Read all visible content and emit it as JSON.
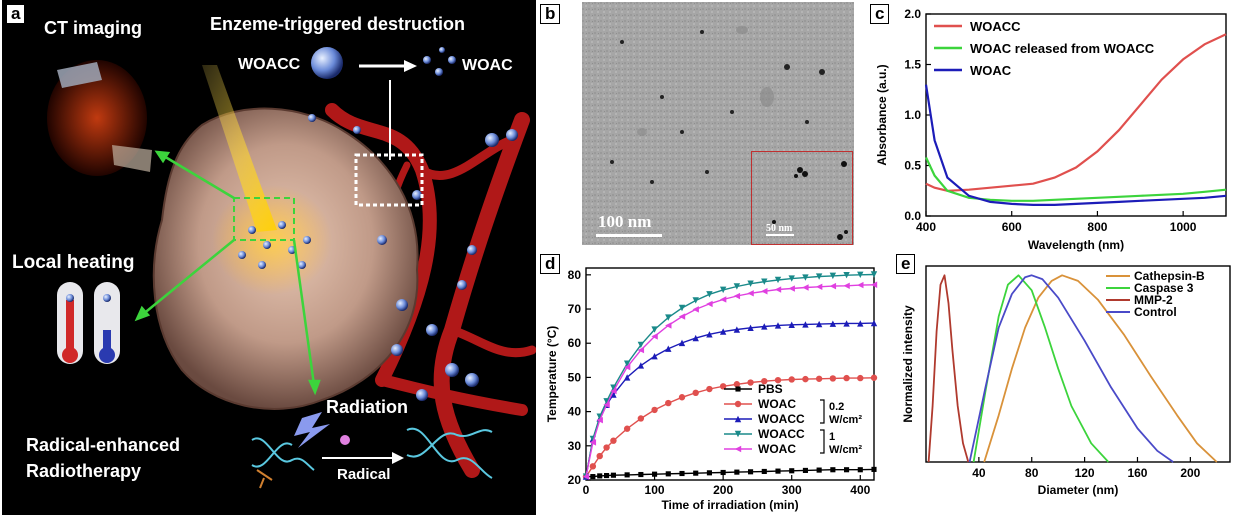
{
  "panels": {
    "a": "a",
    "b": "b",
    "c": "c",
    "d": "d",
    "e": "e"
  },
  "panel_a": {
    "ct": "CT imaging",
    "enzyme": "Enzeme-triggered destruction",
    "woacc": "WOACC",
    "woac": "WOAC",
    "heat": "Local heating",
    "radiation": "Radiation",
    "rert1": "Radical-enhanced",
    "rert2": "Radiotherapy",
    "radical": "Radical"
  },
  "panel_b": {
    "scale": "100 nm",
    "inset_scale": "50 nm"
  },
  "colors": {
    "red": "#e0504e",
    "green": "#3cd43c",
    "blue": "#1c1cb8",
    "black": "#000000",
    "teal": "#1a8a8a",
    "magenta": "#e040e0",
    "orange": "#d9923a",
    "mmp": "#b03a2e",
    "ctrl": "#4a4ac8"
  },
  "chart_data": [
    {
      "id": "c",
      "type": "line",
      "xlabel": "Wavelength (nm)",
      "ylabel": "Absorbance (a.u.)",
      "xlim": [
        400,
        1100
      ],
      "ylim": [
        0,
        2.0
      ],
      "xticks": [
        "400",
        "600",
        "800",
        "1000"
      ],
      "yticks": [
        "0.0",
        "0.5",
        "1.0",
        "1.5",
        "2.0"
      ],
      "legend_position": "top-left",
      "x": [
        400,
        420,
        450,
        500,
        550,
        600,
        650,
        700,
        750,
        800,
        850,
        900,
        950,
        1000,
        1050,
        1100
      ],
      "series": [
        {
          "name": "WOACC",
          "color": "#e0504e",
          "values": [
            0.32,
            0.28,
            0.25,
            0.26,
            0.28,
            0.3,
            0.32,
            0.38,
            0.48,
            0.64,
            0.85,
            1.1,
            1.35,
            1.55,
            1.7,
            1.8
          ]
        },
        {
          "name": "WOAC released from WOACC",
          "color": "#3cd43c",
          "values": [
            0.58,
            0.4,
            0.25,
            0.18,
            0.16,
            0.15,
            0.15,
            0.16,
            0.17,
            0.18,
            0.19,
            0.2,
            0.21,
            0.22,
            0.24,
            0.26
          ]
        },
        {
          "name": "WOAC",
          "color": "#1c1cb8",
          "values": [
            1.3,
            0.75,
            0.38,
            0.2,
            0.14,
            0.12,
            0.11,
            0.11,
            0.12,
            0.13,
            0.14,
            0.15,
            0.16,
            0.17,
            0.18,
            0.2
          ]
        }
      ]
    },
    {
      "id": "d",
      "type": "line",
      "xlabel": "Time of irradiation  (min)",
      "ylabel": "Temperature (°C)",
      "xlim": [
        0,
        420
      ],
      "ylim": [
        20,
        82
      ],
      "xticks": [
        "0",
        "100",
        "200",
        "300",
        "400"
      ],
      "yticks": [
        "20",
        "30",
        "40",
        "50",
        "60",
        "70",
        "80"
      ],
      "legend_position": "bottom-right",
      "bracket_labels": [
        {
          "top": "0.2",
          "bottom": "W/cm²"
        },
        {
          "top": "1",
          "bottom": "W/cm²"
        }
      ],
      "x": [
        0,
        10,
        20,
        30,
        40,
        60,
        80,
        100,
        120,
        140,
        160,
        180,
        200,
        220,
        240,
        260,
        280,
        300,
        320,
        340,
        360,
        380,
        400,
        420
      ],
      "series": [
        {
          "name": "PBS",
          "color": "#000000",
          "marker": "square",
          "values": [
            21,
            21,
            21.2,
            21.3,
            21.4,
            21.5,
            21.6,
            21.7,
            21.8,
            21.9,
            22,
            22.1,
            22.2,
            22.3,
            22.4,
            22.5,
            22.6,
            22.7,
            22.8,
            22.9,
            23,
            23,
            23,
            23.1
          ]
        },
        {
          "name": "WOAC",
          "color": "#e0504e",
          "marker": "circle",
          "values": [
            21,
            24,
            27,
            29.5,
            31.5,
            35,
            38,
            40.5,
            42.5,
            44.2,
            45.5,
            46.6,
            47.4,
            48,
            48.5,
            48.9,
            49.2,
            49.4,
            49.5,
            49.6,
            49.7,
            49.8,
            49.8,
            49.9
          ]
        },
        {
          "name": "WOACC",
          "color": "#1c1cb8",
          "marker": "triangle",
          "values": [
            21,
            32,
            38,
            42,
            45,
            50,
            53.5,
            56.2,
            58.4,
            60.1,
            61.5,
            62.6,
            63.4,
            64,
            64.5,
            64.9,
            65.2,
            65.4,
            65.5,
            65.6,
            65.7,
            65.8,
            65.8,
            65.9
          ]
        },
        {
          "name": "WOACC",
          "color": "#1a8a8a",
          "marker": "triangle-down",
          "values": [
            21,
            32,
            38.5,
            43,
            47,
            54,
            59.5,
            64,
            67.5,
            70.3,
            72.5,
            74.3,
            75.6,
            76.6,
            77.4,
            78,
            78.5,
            78.9,
            79.2,
            79.5,
            79.7,
            79.9,
            80,
            80.1
          ]
        },
        {
          "name": "WOAC",
          "color": "#e040e0",
          "marker": "triangle-left",
          "values": [
            21,
            31,
            37.5,
            42,
            46,
            53,
            58,
            62,
            65.2,
            67.8,
            69.9,
            71.5,
            72.8,
            73.8,
            74.6,
            75.2,
            75.7,
            76,
            76.3,
            76.5,
            76.7,
            76.8,
            77,
            77.1
          ]
        }
      ]
    },
    {
      "id": "e",
      "type": "line",
      "xlabel": "Diameter (nm)",
      "ylabel": "Normalized intensity",
      "xlim": [
        0,
        230
      ],
      "ylim": [
        0,
        1.05
      ],
      "xticks": [
        "40",
        "80",
        "120",
        "160",
        "200"
      ],
      "legend_position": "top-right",
      "series": [
        {
          "name": "Cathepsin-B",
          "color": "#d9923a",
          "x": [
            44,
            55,
            65,
            75,
            85,
            95,
            103,
            115,
            130,
            150,
            170,
            190,
            205,
            220
          ],
          "values": [
            0,
            0.25,
            0.5,
            0.72,
            0.88,
            0.97,
            1.0,
            0.97,
            0.87,
            0.68,
            0.46,
            0.25,
            0.1,
            0
          ]
        },
        {
          "name": "Caspase 3",
          "color": "#3cd43c",
          "x": [
            36,
            45,
            55,
            62,
            70,
            80,
            90,
            100,
            110,
            125,
            138
          ],
          "values": [
            0,
            0.38,
            0.78,
            0.95,
            1.0,
            0.92,
            0.72,
            0.5,
            0.3,
            0.1,
            0
          ]
        },
        {
          "name": "MMP-2",
          "color": "#b03a2e",
          "x": [
            2,
            5,
            8,
            11,
            14,
            17,
            20,
            24,
            28,
            32
          ],
          "values": [
            0,
            0.3,
            0.7,
            0.95,
            1.0,
            0.85,
            0.6,
            0.3,
            0.1,
            0
          ]
        },
        {
          "name": "Control",
          "color": "#4a4ac8",
          "x": [
            33,
            45,
            55,
            65,
            75,
            80,
            88,
            100,
            120,
            140,
            160,
            175,
            187
          ],
          "values": [
            0,
            0.4,
            0.72,
            0.9,
            0.99,
            1.0,
            0.98,
            0.88,
            0.65,
            0.4,
            0.18,
            0.06,
            0
          ]
        }
      ]
    }
  ]
}
